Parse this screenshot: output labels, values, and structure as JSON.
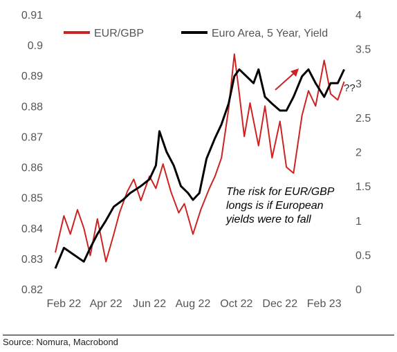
{
  "chart_data": {
    "type": "line",
    "x_tick_labels": [
      "Feb 22",
      "Apr 22",
      "Jun 22",
      "Aug 22",
      "Oct 22",
      "Dec 22",
      "Feb 23"
    ],
    "y_left": {
      "ticks": [
        "0.82",
        "0.83",
        "0.84",
        "0.85",
        "0.86",
        "0.87",
        "0.88",
        "0.89",
        "0.9",
        "0.91"
      ],
      "range": [
        0.82,
        0.91
      ]
    },
    "y_right": {
      "ticks": [
        "0",
        "0.5",
        "1",
        "1.5",
        "2",
        "2.5",
        "3",
        "3.5",
        "4"
      ],
      "range": [
        0,
        4
      ]
    },
    "grid": false,
    "legend_position": "top",
    "series": [
      {
        "name": "EUR/GBP",
        "axis": "left",
        "color": "#cc2222",
        "x": [
          "2022-01-20",
          "2022-02-01",
          "2022-02-10",
          "2022-02-20",
          "2022-03-01",
          "2022-03-10",
          "2022-03-20",
          "2022-04-01",
          "2022-04-12",
          "2022-04-20",
          "2022-05-01",
          "2022-05-10",
          "2022-05-20",
          "2022-06-01",
          "2022-06-10",
          "2022-06-20",
          "2022-07-01",
          "2022-07-12",
          "2022-07-20",
          "2022-08-01",
          "2022-08-12",
          "2022-08-24",
          "2022-09-01",
          "2022-09-10",
          "2022-09-20",
          "2022-09-28",
          "2022-10-05",
          "2022-10-12",
          "2022-10-20",
          "2022-11-01",
          "2022-11-10",
          "2022-11-20",
          "2022-12-01",
          "2022-12-10",
          "2022-12-20",
          "2023-01-01",
          "2023-01-10",
          "2023-01-20",
          "2023-02-01",
          "2023-02-10",
          "2023-02-20",
          "2023-03-01"
        ],
        "y": [
          0.832,
          0.844,
          0.838,
          0.846,
          0.84,
          0.831,
          0.843,
          0.829,
          0.838,
          0.845,
          0.852,
          0.856,
          0.849,
          0.857,
          0.853,
          0.861,
          0.852,
          0.845,
          0.848,
          0.838,
          0.846,
          0.853,
          0.857,
          0.863,
          0.879,
          0.897,
          0.884,
          0.87,
          0.881,
          0.867,
          0.88,
          0.863,
          0.875,
          0.86,
          0.858,
          0.877,
          0.885,
          0.88,
          0.895,
          0.884,
          0.882,
          0.888
        ]
      },
      {
        "name": "Euro Area, 5 Year, Yield",
        "axis": "right",
        "color": "#000000",
        "x": [
          "2022-01-20",
          "2022-02-01",
          "2022-02-15",
          "2022-03-01",
          "2022-03-10",
          "2022-03-20",
          "2022-04-01",
          "2022-04-12",
          "2022-04-25",
          "2022-05-05",
          "2022-05-20",
          "2022-06-01",
          "2022-06-10",
          "2022-06-15",
          "2022-06-25",
          "2022-07-05",
          "2022-07-15",
          "2022-07-25",
          "2022-08-01",
          "2022-08-10",
          "2022-08-20",
          "2022-09-01",
          "2022-09-10",
          "2022-09-20",
          "2022-09-28",
          "2022-10-05",
          "2022-10-15",
          "2022-10-25",
          "2022-11-01",
          "2022-11-10",
          "2022-11-20",
          "2022-12-01",
          "2022-12-10",
          "2022-12-20",
          "2023-01-01",
          "2023-01-10",
          "2023-01-20",
          "2023-02-01",
          "2023-02-10",
          "2023-02-20",
          "2023-03-01"
        ],
        "y": [
          0.3,
          0.6,
          0.5,
          0.4,
          0.6,
          0.8,
          1.0,
          1.2,
          1.3,
          1.4,
          1.5,
          1.6,
          1.8,
          2.3,
          2.0,
          1.8,
          1.5,
          1.4,
          1.3,
          1.4,
          1.9,
          2.2,
          2.4,
          2.7,
          3.1,
          3.2,
          3.1,
          3.0,
          3.2,
          2.8,
          2.7,
          2.6,
          2.6,
          2.8,
          3.1,
          3.2,
          3.0,
          2.8,
          3.0,
          3.0,
          3.2
        ]
      }
    ],
    "arrow_color": "#cc2222"
  },
  "legend": {
    "eur_gbp_label": "EUR/GBP",
    "yield_label": "Euro Area, 5 Year, Yield"
  },
  "annotation": {
    "lines": [
      "The risk for EUR/GBP",
      "longs is if European",
      "yields were to fall"
    ],
    "question_marks": "??"
  },
  "footer": {
    "source": "Source: Nomura, Macrobond"
  }
}
